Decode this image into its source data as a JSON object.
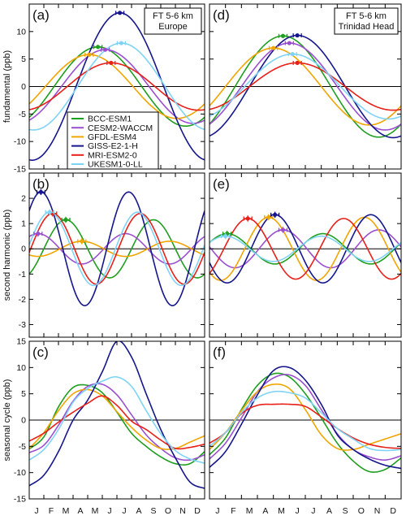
{
  "months": [
    "J",
    "F",
    "M",
    "A",
    "M",
    "J",
    "J",
    "A",
    "S",
    "O",
    "N",
    "D"
  ],
  "models": [
    {
      "name": "BCC-ESM1",
      "color": "#1f9e1f"
    },
    {
      "name": "CESM2-WACCM",
      "color": "#9b4fcf"
    },
    {
      "name": "GFDL-ESM4",
      "color": "#f0a500"
    },
    {
      "name": "GISS-E2-1-H",
      "color": "#16168c"
    },
    {
      "name": "MRI-ESM2-0",
      "color": "#e8201a"
    },
    {
      "name": "UKESM1-0-LL",
      "color": "#7fd3f5"
    }
  ],
  "chart_data": [
    {
      "type": "line",
      "panel": "(a)",
      "box": [
        "FT 5-6 km",
        "Europe"
      ],
      "ylabel": "fundamental (ppb)",
      "ylim": [
        -15,
        15
      ],
      "yticks": [
        -15,
        -10,
        -5,
        0,
        5,
        10
      ],
      "series": [
        {
          "name": "BCC-ESM1",
          "amp": 7.2,
          "peak": 4.7
        },
        {
          "name": "CESM2-WACCM",
          "amp": 6.7,
          "peak": 5.2
        },
        {
          "name": "GFDL-ESM4",
          "amp": 5.8,
          "peak": 4.1
        },
        {
          "name": "GISS-E2-1-H",
          "amp": 13.4,
          "peak": 6.2
        },
        {
          "name": "MRI-ESM2-0",
          "amp": 4.3,
          "peak": 5.6
        },
        {
          "name": "UKESM1-0-LL",
          "amp": 7.9,
          "peak": 6.3
        }
      ]
    },
    {
      "type": "line",
      "panel": "(d)",
      "box": [
        "FT 5-6 km",
        "Trinidad Head"
      ],
      "ylabel": "",
      "ylim": [
        -15,
        15
      ],
      "yticks": [
        -15,
        -10,
        -5,
        0,
        5,
        10
      ],
      "series": [
        {
          "name": "BCC-ESM1",
          "amp": 9.2,
          "peak": 4.6
        },
        {
          "name": "CESM2-WACCM",
          "amp": 7.9,
          "peak": 5.0
        },
        {
          "name": "GFDL-ESM4",
          "amp": 7.0,
          "peak": 4.0
        },
        {
          "name": "GISS-E2-1-H",
          "amp": 9.3,
          "peak": 5.5
        },
        {
          "name": "MRI-ESM2-0",
          "amp": 4.3,
          "peak": 5.5
        },
        {
          "name": "UKESM1-0-LL",
          "amp": 5.9,
          "peak": 5.2
        }
      ]
    },
    {
      "type": "line",
      "panel": "(b)",
      "ylabel": "second harmonic (ppb)",
      "ylim": [
        -3.5,
        3.0
      ],
      "yticks": [
        -3,
        -2,
        -1,
        0,
        1,
        2
      ],
      "series": [
        {
          "name": "BCC-ESM1",
          "amp": 1.15,
          "peak": 2.5
        },
        {
          "name": "CESM2-WACCM",
          "amp": 0.6,
          "peak": 0.6
        },
        {
          "name": "GFDL-ESM4",
          "amp": 0.3,
          "peak": 3.6
        },
        {
          "name": "GISS-E2-1-H",
          "amp": 2.25,
          "peak": 0.8
        },
        {
          "name": "MRI-ESM2-0",
          "amp": 1.4,
          "peak": 1.6
        },
        {
          "name": "UKESM1-0-LL",
          "amp": 1.45,
          "peak": 1.4
        }
      ]
    },
    {
      "type": "line",
      "panel": "(e)",
      "ylabel": "",
      "ylim": [
        -3.5,
        3.0
      ],
      "yticks": [
        -3,
        -2,
        -1,
        0,
        1,
        2
      ],
      "series": [
        {
          "name": "BCC-ESM1",
          "amp": 0.6,
          "peak": 1.1
        },
        {
          "name": "CESM2-WACCM",
          "amp": 0.75,
          "peak": 4.6
        },
        {
          "name": "GFDL-ESM4",
          "amp": 1.25,
          "peak": 3.7
        },
        {
          "name": "GISS-E2-1-H",
          "amp": 1.35,
          "peak": 4.1
        },
        {
          "name": "MRI-ESM2-0",
          "amp": 1.2,
          "peak": 2.4
        },
        {
          "name": "UKESM1-0-LL",
          "amp": 0.5,
          "peak": 1.0
        }
      ]
    },
    {
      "type": "line",
      "panel": "(c)",
      "ylabel": "seasonal cycle (ppb)",
      "ylim": [
        -15,
        15
      ],
      "yticks": [
        -15,
        -10,
        -5,
        0,
        5,
        10,
        15
      ],
      "series": [
        {
          "name": "BCC-ESM1",
          "x": [
            0,
            1,
            2,
            3,
            4,
            5,
            6,
            7,
            8,
            9,
            10,
            11,
            12
          ],
          "y": [
            -5.5,
            -3.2,
            2.5,
            6.2,
            6.6,
            5.2,
            1.5,
            -2.5,
            -5.0,
            -7.0,
            -8.3,
            -8.3,
            -6.0
          ]
        },
        {
          "name": "CESM2-WACCM",
          "x": [
            0,
            1,
            2,
            3,
            4,
            5,
            6,
            7,
            8,
            9,
            10,
            11,
            12
          ],
          "y": [
            -6.2,
            -4.8,
            -1.0,
            3.6,
            6.4,
            6.8,
            4.8,
            1.0,
            -2.8,
            -5.4,
            -7.2,
            -7.6,
            -6.6
          ]
        },
        {
          "name": "GFDL-ESM4",
          "x": [
            0,
            1,
            2,
            3,
            4,
            5,
            6,
            7,
            8,
            9,
            10,
            11,
            12
          ],
          "y": [
            -5.4,
            -2.4,
            1.8,
            5.0,
            5.8,
            4.6,
            1.6,
            -1.4,
            -3.8,
            -5.4,
            -5.4,
            -4.2,
            -3.0
          ]
        },
        {
          "name": "GISS-E2-1-H",
          "x": [
            0,
            1,
            2,
            3,
            4,
            5,
            6,
            7,
            8,
            9,
            10,
            11,
            12
          ],
          "y": [
            -12.5,
            -10.5,
            -6.0,
            0.0,
            3.8,
            9.2,
            15.0,
            12.0,
            5.0,
            -1.8,
            -7.2,
            -11.8,
            -13.0
          ]
        },
        {
          "name": "MRI-ESM2-0",
          "x": [
            0,
            1,
            2,
            3,
            4,
            5,
            6,
            7,
            8,
            9,
            10,
            11,
            12
          ],
          "y": [
            -4.0,
            -2.5,
            -0.4,
            1.5,
            3.2,
            4.6,
            2.8,
            -0.2,
            -1.8,
            -3.8,
            -5.4,
            -5.2,
            -4.6
          ]
        },
        {
          "name": "UKESM1-0-LL",
          "x": [
            0,
            1,
            2,
            3,
            4,
            5,
            6,
            7,
            8,
            9,
            10,
            11,
            12
          ],
          "y": [
            -7.6,
            -5.6,
            -1.8,
            3.4,
            6.0,
            7.4,
            8.2,
            6.4,
            1.8,
            -2.6,
            -5.8,
            -7.4,
            -8.2
          ]
        }
      ]
    },
    {
      "type": "line",
      "panel": "(f)",
      "ylabel": "",
      "ylim": [
        -15,
        15
      ],
      "yticks": [
        -15,
        -10,
        -5,
        0,
        5,
        10,
        15
      ],
      "series": [
        {
          "name": "BCC-ESM1",
          "x": [
            0,
            1,
            2,
            3,
            4,
            5,
            6,
            7,
            8,
            9,
            10,
            11,
            12
          ],
          "y": [
            -6.6,
            -3.4,
            2.0,
            6.6,
            8.8,
            8.2,
            5.0,
            0.4,
            -4.4,
            -7.8,
            -9.8,
            -9.4,
            -7.2
          ]
        },
        {
          "name": "CESM2-WACCM",
          "x": [
            0,
            1,
            2,
            3,
            4,
            5,
            6,
            7,
            8,
            9,
            10,
            11,
            12
          ],
          "y": [
            -7.4,
            -4.4,
            0.4,
            5.4,
            8.0,
            8.6,
            6.6,
            2.0,
            -2.6,
            -5.6,
            -7.0,
            -7.6,
            -6.8
          ]
        },
        {
          "name": "GFDL-ESM4",
          "x": [
            0,
            1,
            2,
            3,
            4,
            5,
            6,
            7,
            8,
            9,
            10,
            11,
            12
          ],
          "y": [
            -5.6,
            -2.4,
            1.8,
            5.4,
            6.8,
            6.0,
            2.0,
            -2.8,
            -5.4,
            -5.6,
            -4.6,
            -3.6,
            -2.6
          ]
        },
        {
          "name": "GISS-E2-1-H",
          "x": [
            0,
            1,
            2,
            3,
            4,
            5,
            6,
            7,
            8,
            9,
            10,
            11,
            12
          ],
          "y": [
            -9.0,
            -6.0,
            -0.8,
            4.8,
            9.4,
            10.0,
            7.6,
            3.0,
            -2.8,
            -5.6,
            -7.4,
            -8.6,
            -9.2
          ]
        },
        {
          "name": "MRI-ESM2-0",
          "x": [
            0,
            1,
            2,
            3,
            4,
            5,
            6,
            7,
            8,
            9,
            10,
            11,
            12
          ],
          "y": [
            -4.4,
            -2.4,
            1.2,
            2.8,
            3.0,
            3.0,
            2.6,
            0.6,
            -1.6,
            -3.4,
            -4.6,
            -5.2,
            -5.4
          ]
        },
        {
          "name": "UKESM1-0-LL",
          "x": [
            0,
            1,
            2,
            3,
            4,
            5,
            6,
            7,
            8,
            9,
            10,
            11,
            12
          ],
          "y": [
            -5.0,
            -2.4,
            1.4,
            4.2,
            5.4,
            5.2,
            4.2,
            1.4,
            -1.6,
            -3.6,
            -5.4,
            -5.8,
            -5.6
          ]
        }
      ]
    }
  ]
}
